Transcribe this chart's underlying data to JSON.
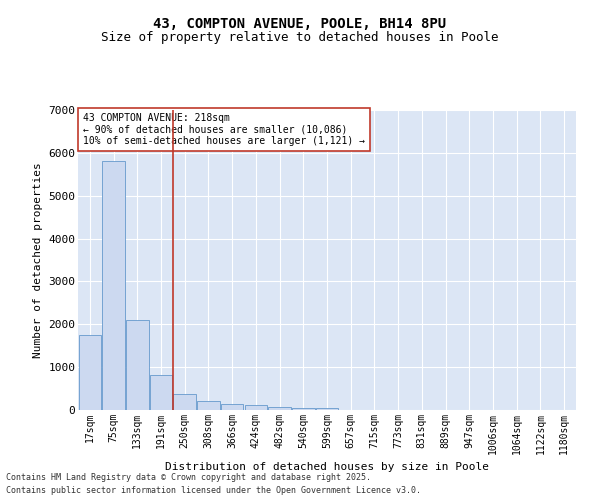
{
  "title_line1": "43, COMPTON AVENUE, POOLE, BH14 8PU",
  "title_line2": "Size of property relative to detached houses in Poole",
  "xlabel": "Distribution of detached houses by size in Poole",
  "ylabel": "Number of detached properties",
  "categories": [
    "17sqm",
    "75sqm",
    "133sqm",
    "191sqm",
    "250sqm",
    "308sqm",
    "366sqm",
    "424sqm",
    "482sqm",
    "540sqm",
    "599sqm",
    "657sqm",
    "715sqm",
    "773sqm",
    "831sqm",
    "889sqm",
    "947sqm",
    "1006sqm",
    "1064sqm",
    "1122sqm",
    "1180sqm"
  ],
  "values": [
    1750,
    5820,
    2090,
    820,
    370,
    210,
    130,
    110,
    70,
    55,
    50,
    0,
    0,
    0,
    0,
    0,
    0,
    0,
    0,
    0,
    0
  ],
  "bar_color": "#ccd9f0",
  "bar_edge_color": "#6699cc",
  "vline_color": "#c0392b",
  "vline_x": 3.5,
  "annotation_text": "43 COMPTON AVENUE: 218sqm\n← 90% of detached houses are smaller (10,086)\n10% of semi-detached houses are larger (1,121) →",
  "annotation_box_edgecolor": "#c0392b",
  "annotation_box_facecolor": "white",
  "ylim": [
    0,
    7000
  ],
  "yticks": [
    0,
    1000,
    2000,
    3000,
    4000,
    5000,
    6000,
    7000
  ],
  "background_color": "#dce6f5",
  "grid_color": "white",
  "footer_line1": "Contains HM Land Registry data © Crown copyright and database right 2025.",
  "footer_line2": "Contains public sector information licensed under the Open Government Licence v3.0.",
  "title_fontsize": 10,
  "subtitle_fontsize": 9,
  "axis_fontsize": 7,
  "annotation_fontsize": 7
}
